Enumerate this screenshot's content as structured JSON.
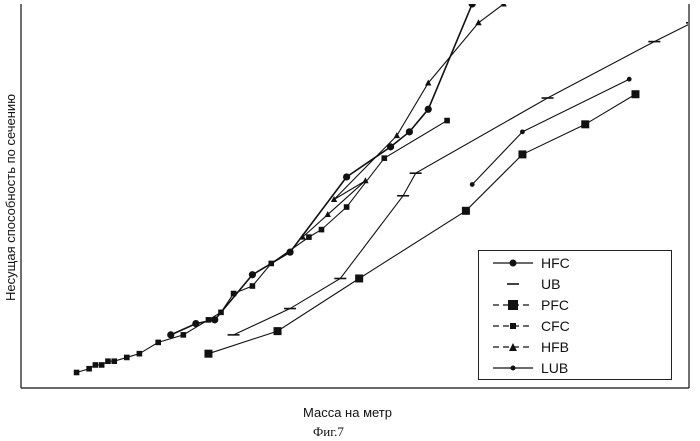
{
  "figure_caption": "Фиг.7",
  "chart_data": {
    "type": "line",
    "title": "",
    "xlabel": "Масса на метр",
    "ylabel": "Несущая способность по сечению",
    "xlim": [
      0,
      100
    ],
    "ylim": [
      0,
      100
    ],
    "grid": false,
    "tick_labels": false,
    "legend_position": "bottom-right",
    "series": [
      {
        "name": "HFC",
        "marker": "circle",
        "color": "#111111",
        "points": [
          [
            17,
            12
          ],
          [
            21,
            15
          ],
          [
            24,
            16
          ],
          [
            30,
            28
          ],
          [
            36,
            34
          ],
          [
            45,
            54
          ],
          [
            52,
            62
          ],
          [
            55,
            66
          ],
          [
            58,
            72
          ],
          [
            65,
            100
          ]
        ]
      },
      {
        "name": "UB",
        "marker": "dash",
        "color": "#111111",
        "points": [
          [
            27,
            12
          ],
          [
            36,
            19
          ],
          [
            44,
            27
          ],
          [
            54,
            49
          ],
          [
            56,
            55
          ],
          [
            77,
            75
          ],
          [
            94,
            90
          ],
          [
            100,
            95
          ]
        ]
      },
      {
        "name": "PFC",
        "marker": "square",
        "color": "#111111",
        "points": [
          [
            23,
            7
          ],
          [
            34,
            13
          ],
          [
            47,
            27
          ],
          [
            64,
            45
          ],
          [
            73,
            60
          ],
          [
            83,
            68
          ],
          [
            91,
            76
          ]
        ]
      },
      {
        "name": "CFC",
        "marker": "square-small",
        "color": "#111111",
        "points": [
          [
            2,
            2
          ],
          [
            4,
            3
          ],
          [
            5,
            4
          ],
          [
            6,
            4
          ],
          [
            7,
            5
          ],
          [
            8,
            5
          ],
          [
            10,
            6
          ],
          [
            12,
            7
          ],
          [
            15,
            10
          ],
          [
            19,
            12
          ],
          [
            23,
            16
          ],
          [
            25,
            18
          ],
          [
            27,
            23
          ],
          [
            30,
            25
          ],
          [
            33,
            31
          ],
          [
            39,
            38
          ],
          [
            41,
            40
          ],
          [
            45,
            46
          ],
          [
            51,
            59
          ],
          [
            61,
            69
          ]
        ]
      },
      {
        "name": "HFB",
        "marker": "triangle",
        "color": "#111111",
        "points": [
          [
            38,
            38
          ],
          [
            42,
            44
          ],
          [
            48,
            53
          ],
          [
            43,
            48
          ],
          [
            53,
            65
          ],
          [
            58,
            79
          ],
          [
            66,
            95
          ],
          [
            70,
            100
          ]
        ]
      },
      {
        "name": "LUB",
        "marker": "circle-small",
        "color": "#111111",
        "points": [
          [
            65,
            52
          ],
          [
            73,
            66
          ],
          [
            90,
            80
          ]
        ]
      }
    ]
  }
}
